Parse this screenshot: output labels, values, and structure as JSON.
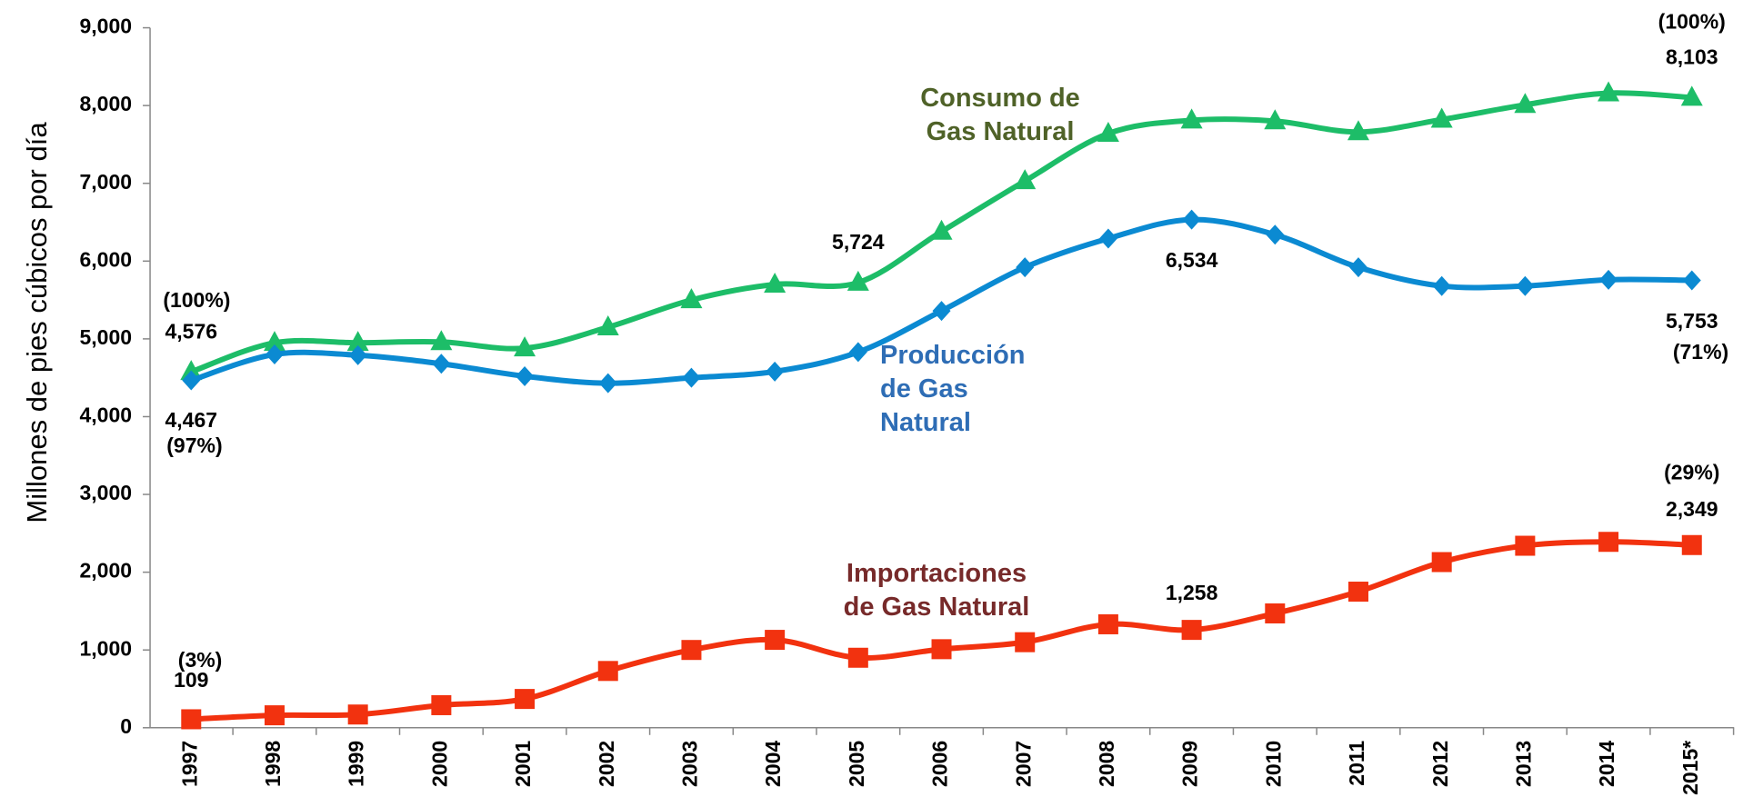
{
  "chart_data": {
    "type": "line",
    "y_label": "Millones de pies cúbicos por día",
    "categories": [
      "1997",
      "1998",
      "1999",
      "2000",
      "2001",
      "2002",
      "2003",
      "2004",
      "2005",
      "2006",
      "2007",
      "2008",
      "2009",
      "2010",
      "2011",
      "2012",
      "2013",
      "2014",
      "2015*"
    ],
    "ylim": [
      0,
      9000
    ],
    "yticks": [
      0,
      {
        "value": 1000,
        "label": "1,000"
      },
      {
        "value": 2000,
        "label": "2,000"
      },
      {
        "value": 3000,
        "label": "3,000"
      },
      {
        "value": 4000,
        "label": "4,000"
      },
      {
        "value": 5000,
        "label": "5,000"
      },
      {
        "value": 6000,
        "label": "6,000"
      },
      {
        "value": 7000,
        "label": "7,000"
      },
      {
        "value": 8000,
        "label": "8,000"
      },
      {
        "value": 9000,
        "label": "9,000"
      }
    ],
    "series": [
      {
        "name": "Consumo de Gas Natural",
        "color": "#1dbd68",
        "label_color": "#4f6228",
        "marker": "triangle",
        "values": [
          4576,
          4950,
          4950,
          4960,
          4880,
          5150,
          5500,
          5700,
          5724,
          6380,
          7030,
          7640,
          7810,
          7800,
          7660,
          7820,
          8010,
          8160,
          8103
        ],
        "value_labels": [
          "4,576",
          null,
          null,
          null,
          null,
          null,
          null,
          null,
          "5,724",
          null,
          null,
          null,
          null,
          null,
          null,
          null,
          null,
          null,
          "8,103"
        ],
        "share_labels": [
          "(100%)",
          null,
          null,
          null,
          null,
          null,
          null,
          null,
          null,
          null,
          null,
          null,
          null,
          null,
          null,
          null,
          null,
          null,
          "(100%)"
        ]
      },
      {
        "name": "Producción de Gas Natural",
        "color": "#0b8ad2",
        "label_color": "#2e6db5",
        "marker": "diamond",
        "values": [
          4467,
          4800,
          4790,
          4680,
          4520,
          4430,
          4500,
          4580,
          4830,
          5360,
          5920,
          6290,
          6534,
          6340,
          5920,
          5680,
          5680,
          5760,
          5753
        ],
        "value_labels": [
          "4,467",
          null,
          null,
          null,
          null,
          null,
          null,
          null,
          null,
          null,
          null,
          null,
          "6,534",
          null,
          null,
          null,
          null,
          null,
          "5,753"
        ],
        "share_labels": [
          "(97%)",
          null,
          null,
          null,
          null,
          null,
          null,
          null,
          null,
          null,
          null,
          null,
          null,
          null,
          null,
          null,
          null,
          null,
          "(71%)"
        ]
      },
      {
        "name": "Importaciones de Gas Natural",
        "color": "#f2320f",
        "label_color": "#772a2a",
        "marker": "square",
        "values": [
          109,
          160,
          170,
          290,
          370,
          730,
          1000,
          1130,
          900,
          1010,
          1100,
          1330,
          1258,
          1470,
          1750,
          2130,
          2340,
          2390,
          2349
        ],
        "value_labels": [
          "109",
          null,
          null,
          null,
          null,
          null,
          null,
          null,
          null,
          null,
          null,
          null,
          "1,258",
          null,
          null,
          null,
          null,
          null,
          "2,349"
        ],
        "share_labels": [
          "(3%)",
          null,
          null,
          null,
          null,
          null,
          null,
          null,
          null,
          null,
          null,
          null,
          null,
          null,
          null,
          null,
          null,
          null,
          "(29%)"
        ]
      }
    ]
  }
}
